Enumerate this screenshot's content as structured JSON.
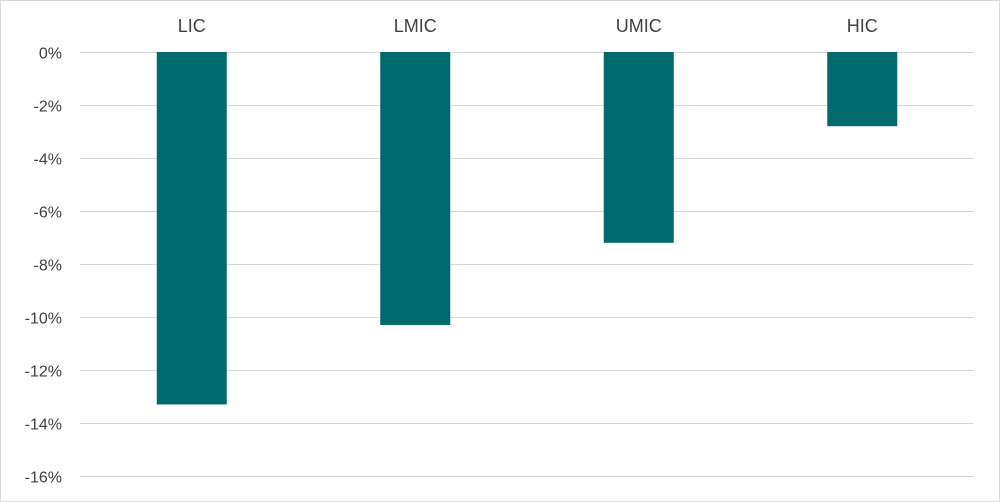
{
  "chart_data": {
    "type": "bar",
    "title": "",
    "xlabel": "",
    "ylabel": "",
    "categories": [
      "LIC",
      "LMIC",
      "UMIC",
      "HIC"
    ],
    "values": [
      -13.3,
      -10.3,
      -7.2,
      -2.8
    ],
    "ylim": [
      -16,
      0
    ],
    "yticks": [
      0,
      -2,
      -4,
      -6,
      -8,
      -10,
      -12,
      -14,
      -16
    ],
    "ytick_labels": [
      "0%",
      "-2%",
      "-4%",
      "-6%",
      "-8%",
      "-10%",
      "-12%",
      "-14%",
      "-16%"
    ],
    "category_label_position": "top",
    "grid": true,
    "legend": "none",
    "bar_color": "#006A6C",
    "grid_color": "#d9d9d9"
  }
}
